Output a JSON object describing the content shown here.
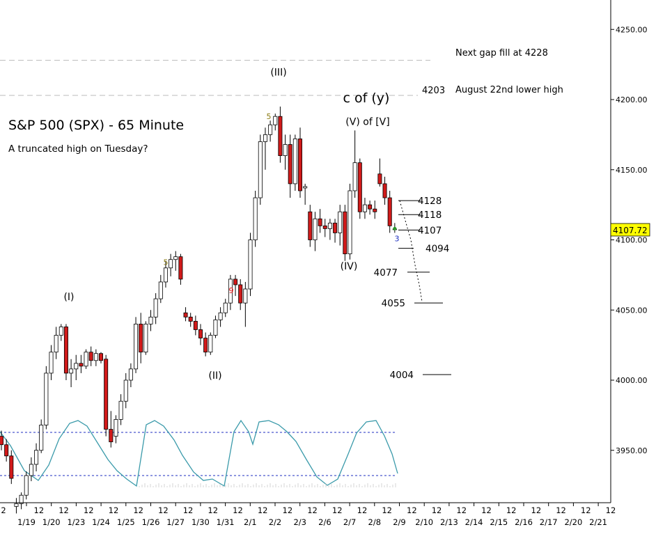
{
  "title": "S&P 500 (SPX) - 65 Minute",
  "subtitle": "A truncated high on Tuesday?",
  "colors": {
    "up_candle": "#ffffff",
    "down_candle": "#d11a1a",
    "candle_outline": "#000000",
    "oscillator": "#3a9aaa",
    "osc_bands": "#1c2ec0",
    "gap_lines": "#bbbbbb",
    "last_price_bg": "#ffff00"
  },
  "chart_data": {
    "type": "candlestick",
    "y_axis": {
      "position": "right",
      "ticks": [
        "4250.00",
        "4200.00",
        "4150.00",
        "4100.00",
        "4050.00",
        "4000.00",
        "3950.00"
      ],
      "tick_values": [
        4250,
        4200,
        4150,
        4100,
        4050,
        4000,
        3950
      ],
      "range": [
        3910,
        4270
      ]
    },
    "x_axis": {
      "dates": [
        "1/19",
        "1/20",
        "1/23",
        "1/24",
        "1/25",
        "1/26",
        "1/27",
        "1/30",
        "1/31",
        "2/1",
        "2/2",
        "2/3",
        "2/6",
        "2/7",
        "2/8",
        "2/9",
        "2/10",
        "2/13",
        "2/14",
        "2/15",
        "2/16",
        "2/17",
        "2/20",
        "2/21"
      ],
      "intraday_label": "12",
      "leading_label": "2"
    },
    "last_price": "4107.72",
    "candles": [
      [
        3960,
        3964,
        3950,
        3954
      ],
      [
        3954,
        3958,
        3942,
        3946
      ],
      [
        3946,
        3950,
        3926,
        3930
      ],
      [
        3910,
        3916,
        3905,
        3912
      ],
      [
        3912,
        3920,
        3908,
        3918
      ],
      [
        3918,
        3935,
        3915,
        3932
      ],
      [
        3932,
        3945,
        3928,
        3940
      ],
      [
        3940,
        3955,
        3935,
        3950
      ],
      [
        3950,
        3972,
        3948,
        3968
      ],
      [
        3968,
        4010,
        3965,
        4005
      ],
      [
        4005,
        4025,
        4000,
        4020
      ],
      [
        4020,
        4038,
        4015,
        4032
      ],
      [
        4032,
        4040,
        4028,
        4038
      ],
      [
        4038,
        4040,
        4000,
        4005
      ],
      [
        4005,
        4015,
        3995,
        4008
      ],
      [
        4008,
        4018,
        4000,
        4012
      ],
      [
        4012,
        4018,
        4005,
        4010
      ],
      [
        4010,
        4022,
        4008,
        4020
      ],
      [
        4020,
        4024,
        4010,
        4014
      ],
      [
        4014,
        4022,
        4010,
        4019
      ],
      [
        4019,
        4020,
        4012,
        4014
      ],
      [
        4015,
        4018,
        3960,
        3965
      ],
      [
        3965,
        3978,
        3952,
        3956
      ],
      [
        3960,
        3975,
        3955,
        3972
      ],
      [
        3972,
        3990,
        3968,
        3985
      ],
      [
        3985,
        4005,
        3980,
        4000
      ],
      [
        4000,
        4012,
        3995,
        4008
      ],
      [
        4008,
        4045,
        4005,
        4040
      ],
      [
        4040,
        4048,
        4012,
        4020
      ],
      [
        4020,
        4042,
        4018,
        4040
      ],
      [
        4040,
        4050,
        4035,
        4045
      ],
      [
        4045,
        4062,
        4040,
        4058
      ],
      [
        4058,
        4075,
        4055,
        4070
      ],
      [
        4070,
        4085,
        4066,
        4080
      ],
      [
        4080,
        4090,
        4074,
        4086
      ],
      [
        4086,
        4092,
        4078,
        4088
      ],
      [
        4088,
        4090,
        4068,
        4072
      ],
      [
        4048,
        4052,
        4042,
        4045
      ],
      [
        4045,
        4048,
        4038,
        4042
      ],
      [
        4042,
        4046,
        4032,
        4036
      ],
      [
        4036,
        4040,
        4025,
        4030
      ],
      [
        4030,
        4034,
        4017,
        4020
      ],
      [
        4020,
        4034,
        4018,
        4032
      ],
      [
        4032,
        4046,
        4030,
        4043
      ],
      [
        4043,
        4052,
        4038,
        4048
      ],
      [
        4048,
        4058,
        4045,
        4055
      ],
      [
        4055,
        4075,
        4050,
        4072
      ],
      [
        4072,
        4075,
        4060,
        4068
      ],
      [
        4068,
        4072,
        4050,
        4055
      ],
      [
        4055,
        4070,
        4038,
        4065
      ],
      [
        4065,
        4105,
        4060,
        4100
      ],
      [
        4100,
        4135,
        4095,
        4130
      ],
      [
        4130,
        4175,
        4125,
        4170
      ],
      [
        4170,
        4180,
        4150,
        4175
      ],
      [
        4175,
        4185,
        4170,
        4182
      ],
      [
        4182,
        4190,
        4178,
        4188
      ],
      [
        4188,
        4195,
        4155,
        4160
      ],
      [
        4160,
        4175,
        4150,
        4168
      ],
      [
        4168,
        4175,
        4130,
        4140
      ],
      [
        4140,
        4175,
        4135,
        4172
      ],
      [
        4172,
        4180,
        4130,
        4135
      ],
      [
        4137,
        4140,
        4125,
        4138
      ],
      [
        4120,
        4125,
        4095,
        4100
      ],
      [
        4100,
        4120,
        4092,
        4115
      ],
      [
        4115,
        4122,
        4105,
        4110
      ],
      [
        4110,
        4115,
        4102,
        4108
      ],
      [
        4108,
        4115,
        4100,
        4112
      ],
      [
        4112,
        4115,
        4098,
        4105
      ],
      [
        4105,
        4125,
        4096,
        4120
      ],
      [
        4120,
        4125,
        4085,
        4090
      ],
      [
        4090,
        4140,
        4086,
        4135
      ],
      [
        4135,
        4178,
        4130,
        4155
      ],
      [
        4155,
        4158,
        4115,
        4120
      ],
      [
        4120,
        4130,
        4115,
        4125
      ],
      [
        4125,
        4128,
        4118,
        4122
      ],
      [
        4122,
        4128,
        4115,
        4120
      ],
      [
        4147,
        4158,
        4138,
        4140
      ],
      [
        4140,
        4145,
        4125,
        4130
      ],
      [
        4130,
        4135,
        4105,
        4110
      ],
      [
        4107.72,
        4112,
        4105,
        4107.72
      ]
    ]
  },
  "oscillator_bands": [
    "upper",
    "lower"
  ],
  "wave_labels": [
    {
      "text": "(I)",
      "x_index": 12,
      "price": 4057
    },
    {
      "text": "(II)",
      "x_index": 40,
      "price": 4001
    },
    {
      "text": "(III)",
      "x_index": 55,
      "price": 4217
    },
    {
      "text": "(IV)",
      "x_index": 70,
      "price": 4079
    },
    {
      "text": "(V) of [V]",
      "x_index": 73,
      "price": 4182
    },
    {
      "text": "c of (y)",
      "x_index": 73,
      "price": 4198
    }
  ],
  "small_labels": [
    {
      "text": "5",
      "x_index": 34,
      "price": 4084,
      "color": "#8a7a10"
    },
    {
      "text": "9",
      "x_index": 47,
      "price": 4064,
      "color": "#e01010"
    },
    {
      "text": "5",
      "x_index": 54,
      "price": 4188,
      "color": "#8a7a10"
    },
    {
      "text": "3",
      "x_index": 79,
      "price": 4101,
      "color": "#1c2ec0"
    }
  ],
  "levels": [
    {
      "label": "4128",
      "price": 4128
    },
    {
      "label": "4118",
      "price": 4118
    },
    {
      "label": "4107",
      "price": 4107
    },
    {
      "label": "4094",
      "price": 4094
    },
    {
      "label": "4077",
      "price": 4077
    },
    {
      "label": "4055",
      "price": 4055
    },
    {
      "label": "4004",
      "price": 4004
    }
  ],
  "gap_lines": [
    {
      "level": "4228",
      "note": "Next gap fill at 4228"
    },
    {
      "level": "4203",
      "note": "August 22nd lower high"
    }
  ]
}
